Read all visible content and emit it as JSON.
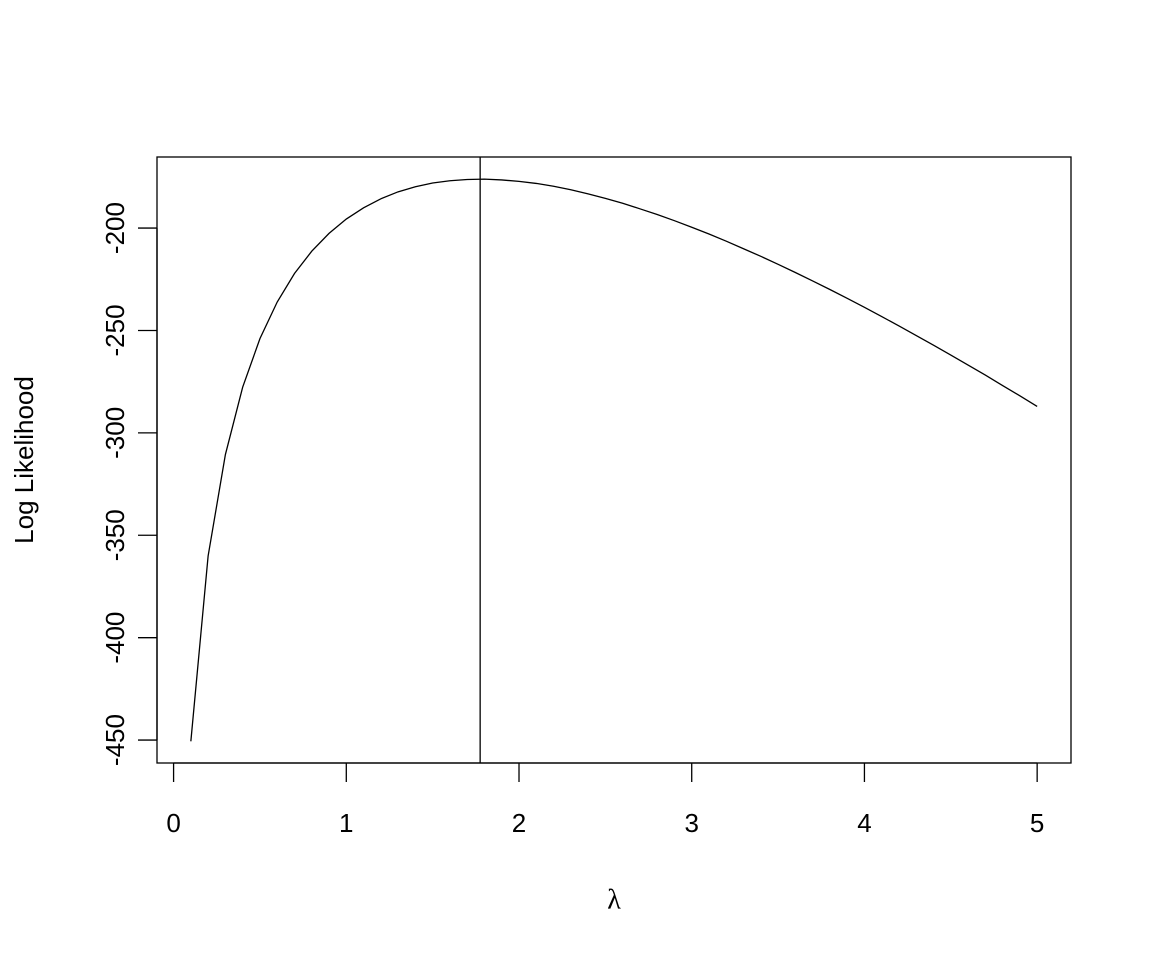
{
  "chart_data": {
    "type": "line",
    "x_label": "λ",
    "y_label": "Log Likelihood",
    "x": [
      0.1,
      0.2,
      0.3,
      0.4,
      0.5,
      0.6,
      0.7,
      0.8,
      0.9,
      1.0,
      1.1,
      1.2,
      1.3,
      1.4,
      1.5,
      1.6,
      1.7,
      1.8,
      1.9,
      2.0,
      2.1,
      2.2,
      2.3,
      2.4,
      2.5,
      2.6,
      2.7,
      2.8,
      2.9,
      3.0,
      3.1,
      3.2,
      3.3,
      3.4,
      3.5,
      3.6,
      3.7,
      3.8,
      3.9,
      4.0,
      4.1,
      4.2,
      4.3,
      4.4,
      4.5,
      4.6,
      4.7,
      4.8,
      4.9,
      5.0
    ],
    "values": [
      -450.6,
      -360.1,
      -310.6,
      -277.7,
      -254.0,
      -236.1,
      -222.2,
      -211.3,
      -202.6,
      -195.6,
      -190.1,
      -185.7,
      -182.3,
      -179.8,
      -178.0,
      -176.9,
      -176.3,
      -176.1,
      -176.5,
      -177.2,
      -178.2,
      -179.6,
      -181.3,
      -183.3,
      -185.5,
      -187.9,
      -190.6,
      -193.4,
      -196.4,
      -199.6,
      -202.9,
      -206.4,
      -210.1,
      -213.8,
      -217.7,
      -221.7,
      -225.8,
      -230.0,
      -234.3,
      -238.7,
      -243.2,
      -247.8,
      -252.5,
      -257.2,
      -262.0,
      -266.9,
      -271.8,
      -276.9,
      -281.9,
      -287.1
    ],
    "color": "#000000",
    "vline": 1.775,
    "xlim": [
      -0.096,
      5.196
    ],
    "ylim": [
      -461.2,
      -165.3
    ],
    "xticks": [
      0,
      1,
      2,
      3,
      4,
      5
    ],
    "yticks": [
      -450,
      -400,
      -350,
      -300,
      -250,
      -200
    ]
  }
}
